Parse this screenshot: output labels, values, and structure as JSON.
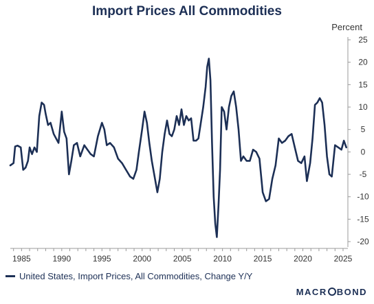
{
  "chart_data": {
    "type": "line",
    "title": "Import Prices All Commodities",
    "unit_label": "Percent",
    "x_ticks": [
      "1985",
      "1990",
      "1995",
      "2000",
      "2005",
      "2010",
      "2015",
      "2020",
      "2025"
    ],
    "y_ticks": [
      "25",
      "20",
      "15",
      "10",
      "5",
      "0",
      "-5",
      "-10",
      "-15",
      "-20"
    ],
    "xlim": [
      1983.6,
      2025.6
    ],
    "ylim": [
      -20.6,
      25.0
    ],
    "grid": false,
    "legend_position": "bottom-left",
    "series": [
      {
        "name": "United States, Import Prices, All Commodities, Change Y/Y",
        "color": "#1c2f55",
        "x": [
          1983.6,
          1984.0,
          1984.2,
          1984.5,
          1984.9,
          1985.2,
          1985.5,
          1985.8,
          1986.0,
          1986.3,
          1986.6,
          1986.9,
          1987.2,
          1987.5,
          1987.8,
          1988.0,
          1988.3,
          1988.6,
          1989.0,
          1989.3,
          1989.6,
          1990.0,
          1990.3,
          1990.6,
          1990.9,
          1991.2,
          1991.5,
          1991.9,
          1992.3,
          1992.8,
          1993.2,
          1993.6,
          1994.0,
          1994.5,
          1995.0,
          1995.3,
          1995.6,
          1996.0,
          1996.5,
          1997.0,
          1997.5,
          1998.0,
          1998.5,
          1998.9,
          1999.3,
          1999.6,
          2000.0,
          2000.3,
          2000.6,
          2000.9,
          2001.2,
          2001.5,
          2001.9,
          2002.2,
          2002.5,
          2002.8,
          2003.1,
          2003.4,
          2003.7,
          2004.0,
          2004.3,
          2004.6,
          2004.9,
          2005.2,
          2005.5,
          2005.8,
          2006.1,
          2006.4,
          2006.7,
          2007.0,
          2007.3,
          2007.6,
          2007.9,
          2008.1,
          2008.3,
          2008.5,
          2008.7,
          2008.9,
          2009.1,
          2009.3,
          2009.5,
          2009.7,
          2009.9,
          2010.2,
          2010.5,
          2010.8,
          2011.1,
          2011.4,
          2011.7,
          2012.0,
          2012.3,
          2012.6,
          2013.0,
          2013.4,
          2013.8,
          2014.2,
          2014.6,
          2015.0,
          2015.4,
          2015.8,
          2016.2,
          2016.6,
          2017.0,
          2017.4,
          2017.8,
          2018.2,
          2018.6,
          2019.0,
          2019.4,
          2019.8,
          2020.2,
          2020.5,
          2020.9,
          2021.2,
          2021.5,
          2021.8,
          2022.1,
          2022.4,
          2022.7,
          2023.0,
          2023.3,
          2023.6,
          2024.0,
          2024.4,
          2024.8,
          2025.1,
          2025.4
        ],
        "values": [
          -3,
          -2.5,
          1.2,
          1.4,
          1.0,
          -4.0,
          -3.5,
          -2.0,
          1.0,
          -0.5,
          1.0,
          0.0,
          8.0,
          11.0,
          10.5,
          8.5,
          6.0,
          6.5,
          4.0,
          3.0,
          2.0,
          9.0,
          4.5,
          3.0,
          -5.0,
          -2.0,
          1.5,
          2.0,
          -1.0,
          1.5,
          0.5,
          -0.5,
          -1.0,
          3.5,
          6.5,
          5.0,
          1.5,
          2.0,
          1.0,
          -1.5,
          -2.5,
          -4.0,
          -5.5,
          -6.0,
          -4.0,
          0.0,
          5.0,
          9.0,
          6.5,
          2.0,
          -2.0,
          -5.0,
          -9.0,
          -6.0,
          0.0,
          4.0,
          7.0,
          4.0,
          3.5,
          5.0,
          8.0,
          6.0,
          9.5,
          6.0,
          8.0,
          7.0,
          7.5,
          2.5,
          2.5,
          3.0,
          6.5,
          10.0,
          14.5,
          19.0,
          20.8,
          16.0,
          2.0,
          -10.0,
          -16.0,
          -19.0,
          -12.0,
          -4.0,
          10.0,
          9.0,
          5.0,
          10.0,
          12.5,
          13.5,
          10.0,
          5.0,
          -2.0,
          -1.0,
          -2.0,
          -2.0,
          0.5,
          0.0,
          -1.5,
          -9.0,
          -11.0,
          -10.5,
          -6.0,
          -3.0,
          3.0,
          2.0,
          2.5,
          3.5,
          4.0,
          1.0,
          -2.0,
          -2.5,
          -1.0,
          -6.5,
          -2.5,
          3.0,
          10.5,
          11.0,
          12.0,
          11.0,
          6.0,
          -1.0,
          -5.0,
          -5.5,
          1.5,
          1.0,
          0.5,
          2.5,
          1.0
        ]
      }
    ]
  },
  "brand": {
    "pre": "MACR",
    "post": "BOND"
  }
}
